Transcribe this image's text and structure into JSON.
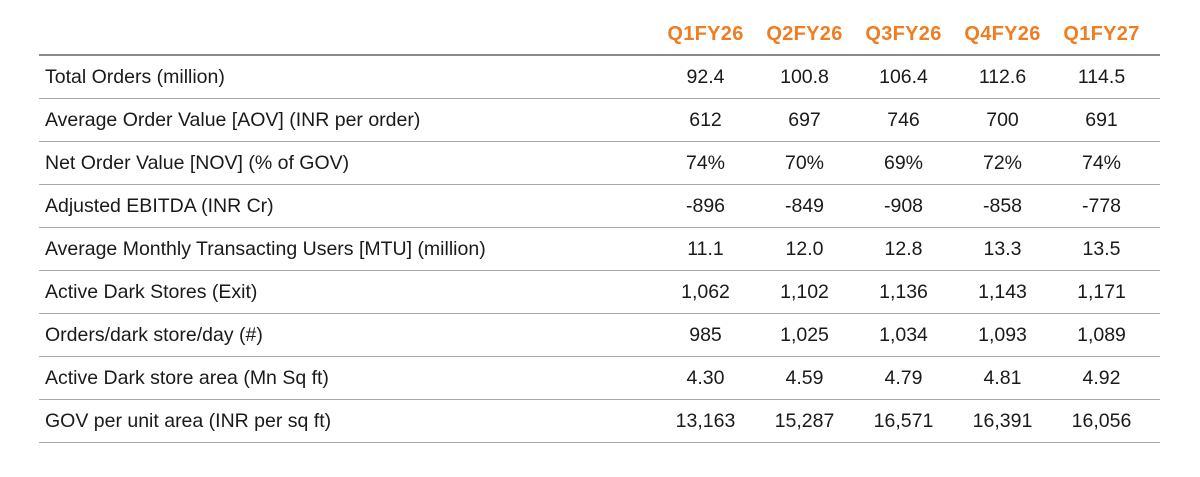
{
  "table": {
    "columns": [
      "Q1FY26",
      "Q2FY26",
      "Q3FY26",
      "Q4FY26",
      "Q1FY27"
    ],
    "rows": [
      {
        "label": "Total Orders (million)",
        "values": [
          "92.4",
          "100.8",
          "106.4",
          "112.6",
          "114.5"
        ]
      },
      {
        "label": "Average Order Value [AOV] (INR per order)",
        "values": [
          "612",
          "697",
          "746",
          "700",
          "691"
        ]
      },
      {
        "label": "Net Order Value [NOV] (% of GOV)",
        "values": [
          "74%",
          "70%",
          "69%",
          "72%",
          "74%"
        ]
      },
      {
        "label": "Adjusted EBITDA (INR Cr)",
        "values": [
          "-896",
          "-849",
          "-908",
          "-858",
          "-778"
        ]
      },
      {
        "label": "Average Monthly Transacting Users [MTU] (million)",
        "values": [
          "11.1",
          "12.0",
          "12.8",
          "13.3",
          "13.5"
        ]
      },
      {
        "label": "Active Dark Stores (Exit)",
        "values": [
          "1,062",
          "1,102",
          "1,136",
          "1,143",
          "1,171"
        ]
      },
      {
        "label": "Orders/dark store/day (#)",
        "values": [
          "985",
          "1,025",
          "1,034",
          "1,093",
          "1,089"
        ]
      },
      {
        "label": "Active Dark store area (Mn Sq ft)",
        "values": [
          "4.30",
          "4.59",
          "4.79",
          "4.81",
          "4.92"
        ]
      },
      {
        "label": "GOV per unit area (INR per sq ft)",
        "values": [
          "13,163",
          "15,287",
          "16,571",
          "16,391",
          "16,056"
        ]
      }
    ]
  },
  "colors": {
    "header_accent": "#ef7d22",
    "rule": "#a9a9a9"
  }
}
